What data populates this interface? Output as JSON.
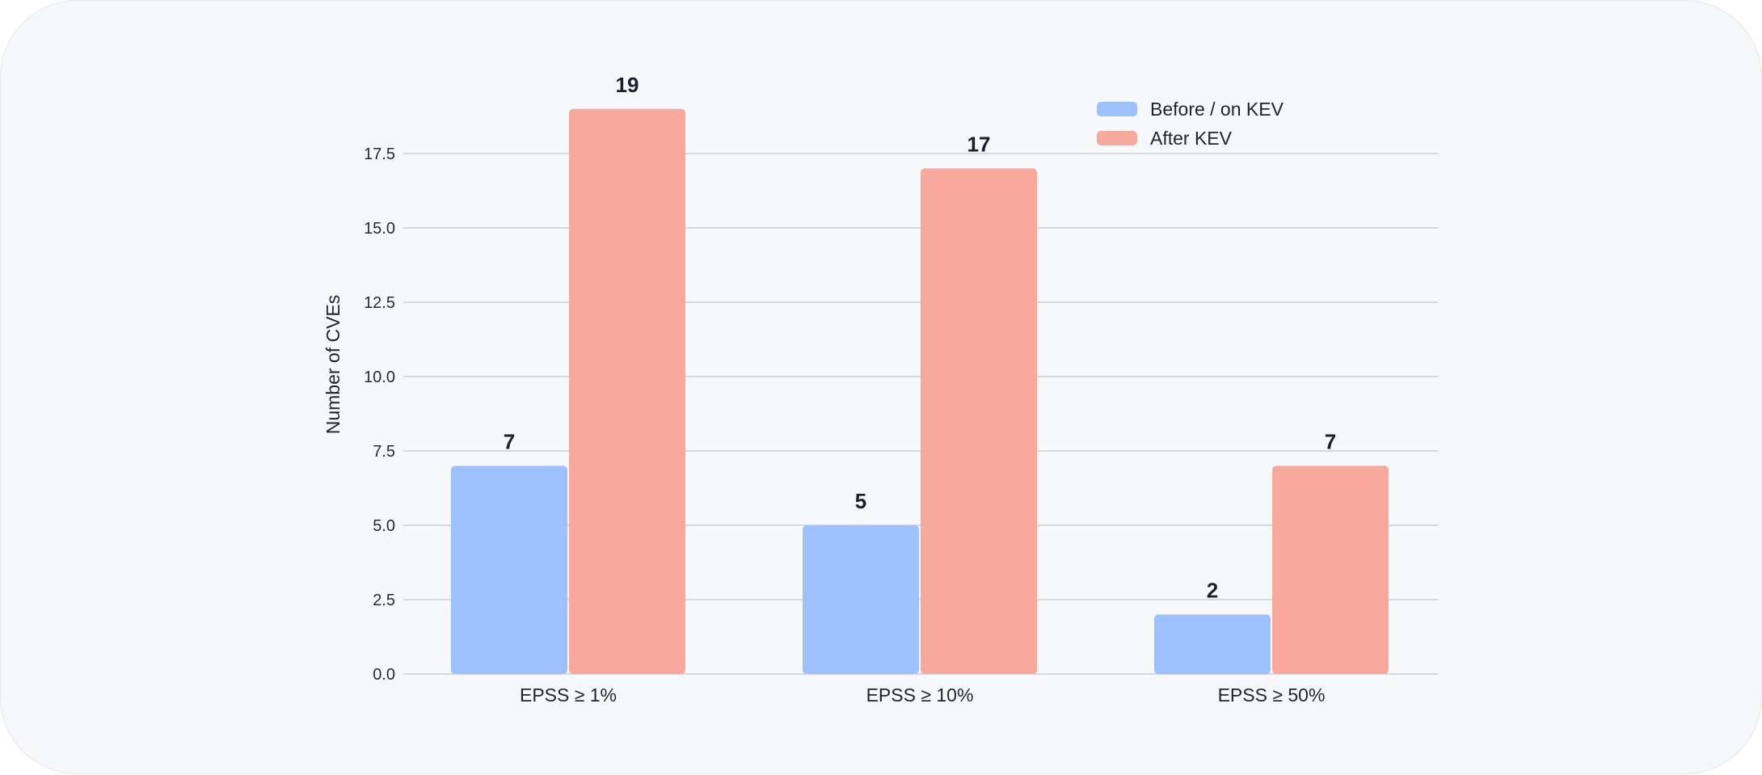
{
  "chart_data": {
    "type": "bar",
    "title": "",
    "xlabel": "",
    "ylabel": "Number of CVEs",
    "categories": [
      "EPSS ≥ 1%",
      "EPSS ≥ 10%",
      "EPSS ≥ 50%"
    ],
    "series": [
      {
        "name": "Before / on KEV",
        "values": [
          7,
          5,
          2
        ],
        "color": "#9ec1fb"
      },
      {
        "name": "After KEV",
        "values": [
          19,
          17,
          7
        ],
        "color": "#f7a99d"
      }
    ],
    "ylim": [
      0,
      19.5
    ],
    "yticks": [
      "0.0",
      "2.5",
      "5.0",
      "7.5",
      "10.0",
      "12.5",
      "15.0",
      "17.5"
    ],
    "grid": true,
    "legend_position": "top-right",
    "data_labels": true,
    "colors": {
      "background": "#f7f8fb",
      "grid": "#c9cdd8",
      "text": "#1f2330"
    }
  }
}
